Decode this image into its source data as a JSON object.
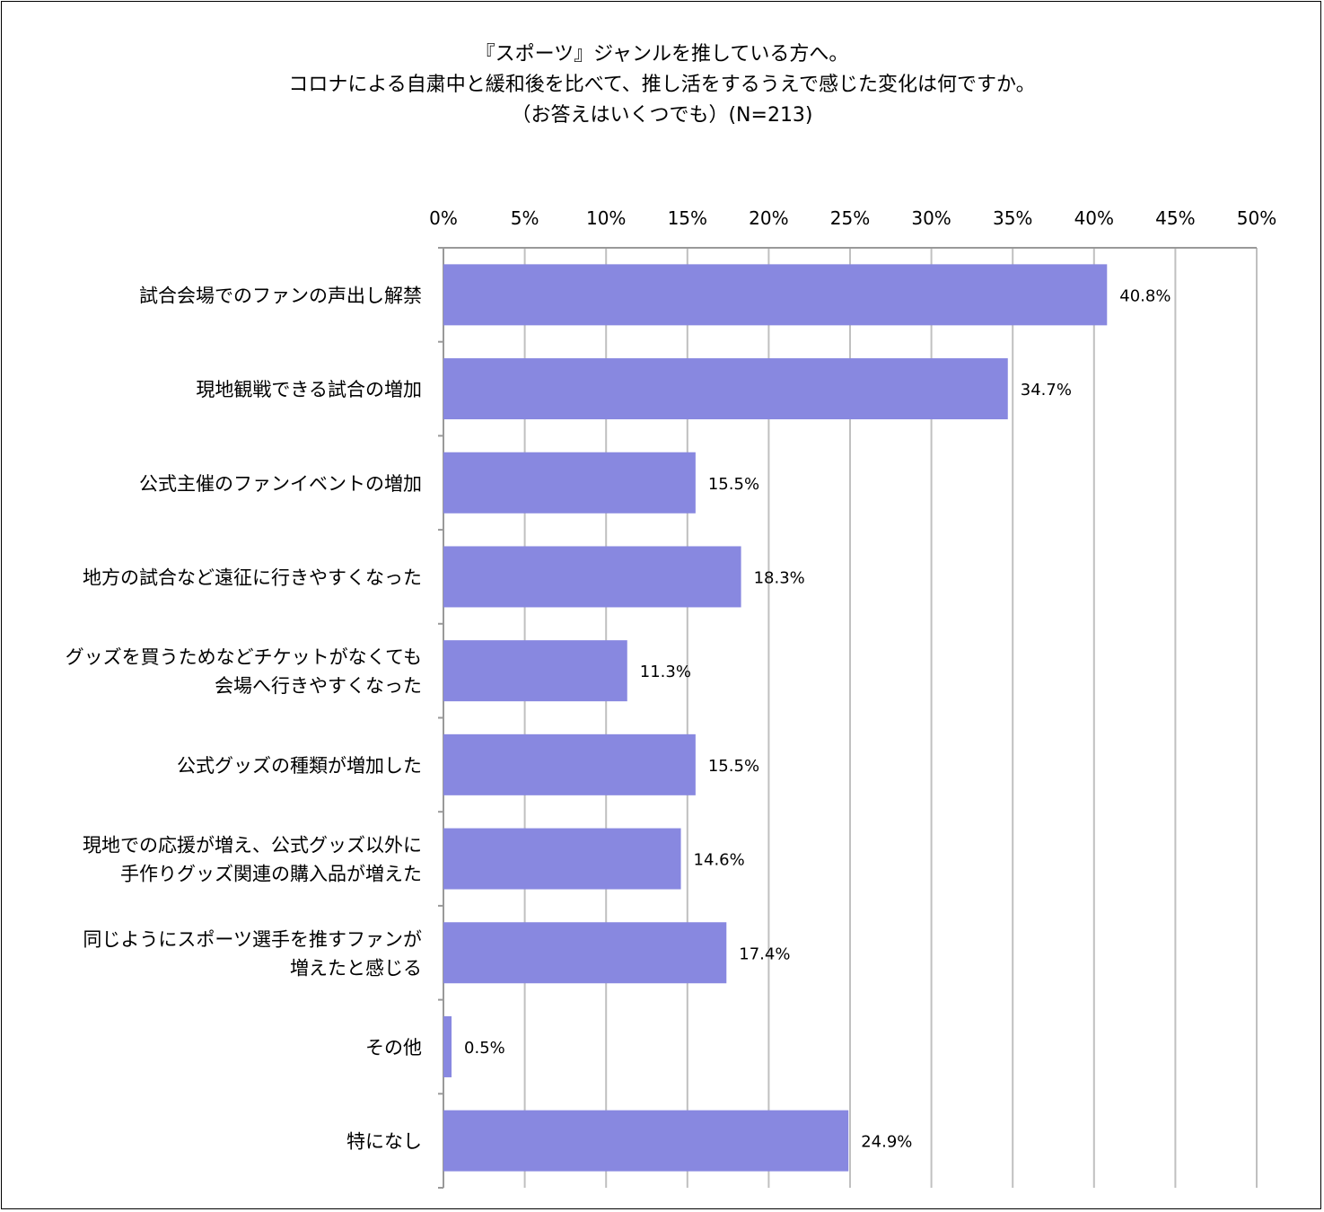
{
  "title_lines": [
    "『スポーツ』ジャンルを推している方へ。",
    "コロナによる自粛中と緩和後を比べて、推し活をするうえで感じた変化は何ですか。",
    "（お答えはいくつでも）(N=213)"
  ],
  "chart_data": {
    "type": "bar",
    "orientation": "horizontal",
    "categories": [
      [
        "試合会場でのファンの声出し解禁"
      ],
      [
        "現地観戦できる試合の増加"
      ],
      [
        "公式主催のファンイベントの増加"
      ],
      [
        "地方の試合など遠征に行きやすくなった"
      ],
      [
        "グッズを買うためなどチケットがなくても",
        "会場へ行きやすくなった"
      ],
      [
        "公式グッズの種類が増加した"
      ],
      [
        "現地での応援が増え、公式グッズ以外に",
        "手作りグッズ関連の購入品が増えた"
      ],
      [
        "同じようにスポーツ選手を推すファンが",
        "増えたと感じる"
      ],
      [
        "その他"
      ],
      [
        "特になし"
      ]
    ],
    "values": [
      40.8,
      34.7,
      15.5,
      18.3,
      11.3,
      15.5,
      14.6,
      17.4,
      0.5,
      24.9
    ],
    "value_labels": [
      "40.8%",
      "34.7%",
      "15.5%",
      "18.3%",
      "11.3%",
      "15.5%",
      "14.6%",
      "17.4%",
      "0.5%",
      "24.9%"
    ],
    "xlim": [
      0,
      50
    ],
    "ticks": [
      0,
      5,
      10,
      15,
      20,
      25,
      30,
      35,
      40,
      45,
      50
    ],
    "tick_labels": [
      "0%",
      "5%",
      "10%",
      "15%",
      "20%",
      "25%",
      "30%",
      "35%",
      "40%",
      "45%",
      "50%"
    ],
    "axis_position": "top",
    "grid": true,
    "bar_color": "#8888e0",
    "grid_color": "#c0c0c0"
  }
}
